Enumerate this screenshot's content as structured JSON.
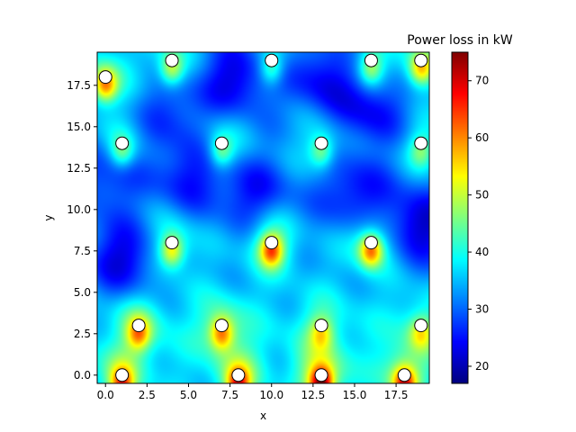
{
  "chart_data": {
    "type": "heatmap",
    "title": "",
    "xlabel": "x",
    "ylabel": "y",
    "xlim": [
      -0.5,
      19.5
    ],
    "ylim": [
      -0.5,
      19.5
    ],
    "xticks": [
      0.0,
      2.5,
      5.0,
      7.5,
      10.0,
      12.5,
      15.0,
      17.5
    ],
    "xtick_labels": [
      "0.0",
      "2.5",
      "5.0",
      "7.5",
      "10.0",
      "12.5",
      "15.0",
      "17.5"
    ],
    "yticks": [
      0.0,
      2.5,
      5.0,
      7.5,
      10.0,
      12.5,
      15.0,
      17.5
    ],
    "ytick_labels": [
      "0.0",
      "2.5",
      "5.0",
      "7.5",
      "10.0",
      "12.5",
      "15.0",
      "17.5"
    ],
    "colormap": "jet",
    "colorbar": {
      "label": "Power loss in kW",
      "range": [
        17,
        75
      ],
      "ticks": [
        20,
        30,
        40,
        50,
        60,
        70
      ],
      "tick_labels": [
        "20",
        "30",
        "40",
        "50",
        "60",
        "70"
      ]
    },
    "background_level": 34,
    "hotspots": [
      {
        "x": 1,
        "y": 0,
        "value": 62
      },
      {
        "x": 8,
        "y": 0,
        "value": 65
      },
      {
        "x": 13,
        "y": 0,
        "value": 74
      },
      {
        "x": 18,
        "y": 0,
        "value": 66
      },
      {
        "x": 2,
        "y": 3,
        "value": 57
      },
      {
        "x": 7,
        "y": 3,
        "value": 58
      },
      {
        "x": 13,
        "y": 3,
        "value": 50
      },
      {
        "x": 19,
        "y": 3,
        "value": 50
      },
      {
        "x": 4,
        "y": 8,
        "value": 55
      },
      {
        "x": 10,
        "y": 8,
        "value": 63
      },
      {
        "x": 16,
        "y": 8,
        "value": 62
      },
      {
        "x": 1,
        "y": 14,
        "value": 48
      },
      {
        "x": 7,
        "y": 14,
        "value": 48
      },
      {
        "x": 13,
        "y": 14,
        "value": 48
      },
      {
        "x": 19,
        "y": 14,
        "value": 46
      },
      {
        "x": 0,
        "y": 18,
        "value": 60
      },
      {
        "x": 4,
        "y": 19,
        "value": 52
      },
      {
        "x": 10,
        "y": 19,
        "value": 48
      },
      {
        "x": 16,
        "y": 19,
        "value": 50
      },
      {
        "x": 19,
        "y": 19,
        "value": 56
      }
    ],
    "cold_regions": [
      {
        "x": 1,
        "y": 7,
        "value": 22
      },
      {
        "x": 5,
        "y": 12,
        "value": 25
      },
      {
        "x": 9,
        "y": 11,
        "value": 25
      },
      {
        "x": 15,
        "y": 11,
        "value": 24
      },
      {
        "x": 8,
        "y": 18,
        "value": 22
      },
      {
        "x": 13,
        "y": 18,
        "value": 24
      },
      {
        "x": 19,
        "y": 9,
        "value": 21
      },
      {
        "x": 16,
        "y": 16,
        "value": 24
      },
      {
        "x": 0,
        "y": 12,
        "value": 26
      },
      {
        "x": 4,
        "y": 16,
        "value": 27
      }
    ],
    "markers": [
      {
        "x": 1,
        "y": 0
      },
      {
        "x": 8,
        "y": 0
      },
      {
        "x": 13,
        "y": 0
      },
      {
        "x": 18,
        "y": 0
      },
      {
        "x": 2,
        "y": 3
      },
      {
        "x": 7,
        "y": 3
      },
      {
        "x": 13,
        "y": 3
      },
      {
        "x": 19,
        "y": 3
      },
      {
        "x": 4,
        "y": 8
      },
      {
        "x": 10,
        "y": 8
      },
      {
        "x": 16,
        "y": 8
      },
      {
        "x": 1,
        "y": 14
      },
      {
        "x": 7,
        "y": 14
      },
      {
        "x": 13,
        "y": 14
      },
      {
        "x": 19,
        "y": 14
      },
      {
        "x": 0,
        "y": 18
      },
      {
        "x": 4,
        "y": 19
      },
      {
        "x": 10,
        "y": 19
      },
      {
        "x": 16,
        "y": 19
      },
      {
        "x": 19,
        "y": 19
      }
    ]
  }
}
